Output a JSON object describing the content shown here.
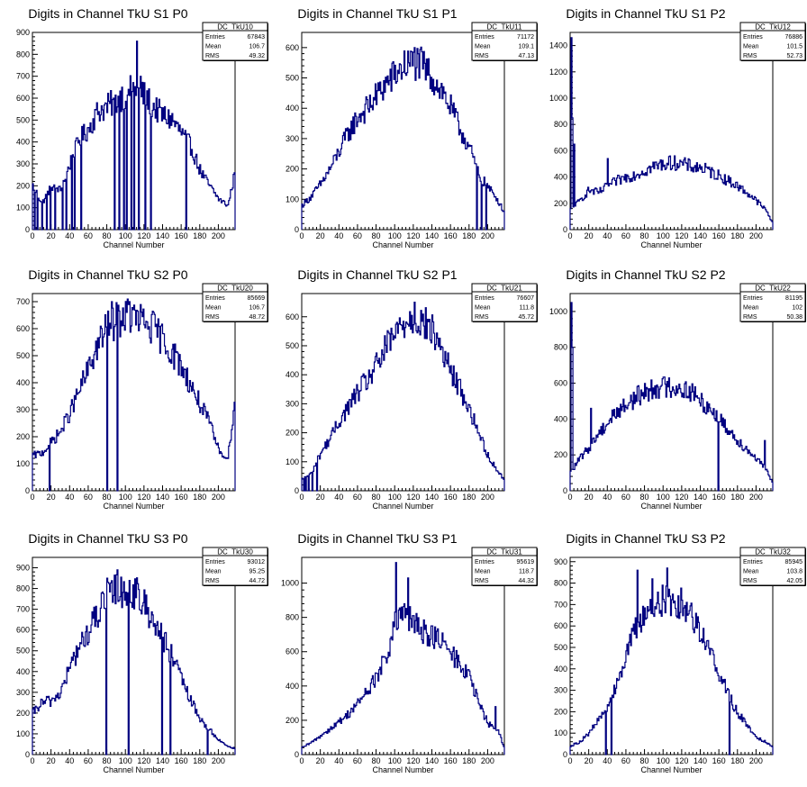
{
  "chart_data": [
    {
      "type": "histogram",
      "title": "Digits in Channel TkU S1 P0",
      "xlabel": "Channel Number",
      "ylabel": "",
      "xlim": [
        0,
        218
      ],
      "ylim": [
        0,
        900
      ],
      "yticks": [
        0,
        100,
        200,
        300,
        400,
        500,
        600,
        700,
        800,
        900
      ],
      "xticks": [
        0,
        20,
        40,
        60,
        80,
        100,
        120,
        140,
        160,
        180,
        200
      ],
      "stats": {
        "name": "DC_TkU10",
        "entries": "67843",
        "mean": "106.7",
        "rms": "49.32"
      },
      "profile": [
        [
          0,
          200
        ],
        [
          10,
          120
        ],
        [
          20,
          200
        ],
        [
          30,
          180
        ],
        [
          40,
          300
        ],
        [
          50,
          410
        ],
        [
          60,
          460
        ],
        [
          70,
          540
        ],
        [
          80,
          560
        ],
        [
          90,
          590
        ],
        [
          100,
          620
        ],
        [
          110,
          650
        ],
        [
          120,
          610
        ],
        [
          130,
          560
        ],
        [
          140,
          520
        ],
        [
          150,
          500
        ],
        [
          160,
          440
        ],
        [
          170,
          380
        ],
        [
          180,
          270
        ],
        [
          190,
          200
        ],
        [
          200,
          140
        ],
        [
          210,
          110
        ],
        [
          217,
          250
        ]
      ],
      "spikes": [
        [
          112,
          860
        ],
        [
          103,
          640
        ],
        [
          116,
          700
        ],
        [
          96,
          650
        ],
        [
          88,
          420
        ]
      ],
      "dips": [
        2,
        5,
        10,
        15,
        19,
        24,
        32,
        36,
        42,
        45,
        52,
        88,
        93,
        98,
        101,
        106,
        109,
        114,
        121,
        127,
        165
      ]
    },
    {
      "type": "histogram",
      "title": "Digits in Channel TkU S1 P1",
      "xlabel": "Channel Number",
      "ylabel": "",
      "xlim": [
        0,
        218
      ],
      "ylim": [
        0,
        650
      ],
      "yticks": [
        0,
        100,
        200,
        300,
        400,
        500,
        600
      ],
      "xticks": [
        0,
        20,
        40,
        60,
        80,
        100,
        120,
        140,
        160,
        180,
        200
      ],
      "stats": {
        "name": "DC_TkU11",
        "entries": "71172",
        "mean": "109.1",
        "rms": "47.13"
      },
      "profile": [
        [
          0,
          80
        ],
        [
          10,
          110
        ],
        [
          20,
          150
        ],
        [
          30,
          200
        ],
        [
          40,
          260
        ],
        [
          50,
          320
        ],
        [
          60,
          370
        ],
        [
          70,
          400
        ],
        [
          80,
          440
        ],
        [
          90,
          480
        ],
        [
          100,
          510
        ],
        [
          110,
          540
        ],
        [
          120,
          550
        ],
        [
          130,
          540
        ],
        [
          140,
          500
        ],
        [
          150,
          460
        ],
        [
          160,
          400
        ],
        [
          170,
          330
        ],
        [
          180,
          270
        ],
        [
          190,
          180
        ],
        [
          200,
          140
        ],
        [
          210,
          100
        ],
        [
          217,
          60
        ]
      ],
      "spikes": [
        [
          121,
          600
        ]
      ],
      "dips": [
        188,
        193,
        198
      ]
    },
    {
      "type": "histogram",
      "title": "Digits in Channel TkU S1 P2",
      "xlabel": "Channel Number",
      "ylabel": "",
      "xlim": [
        0,
        218
      ],
      "ylim": [
        0,
        1500
      ],
      "yticks": [
        0,
        200,
        400,
        600,
        800,
        1000,
        1200,
        1400
      ],
      "xticks": [
        0,
        20,
        40,
        60,
        80,
        100,
        120,
        140,
        160,
        180,
        200
      ],
      "stats": {
        "name": "DC_TkU12",
        "entries": "76886",
        "mean": "101.5",
        "rms": "52.73"
      },
      "profile": [
        [
          0,
          150
        ],
        [
          10,
          220
        ],
        [
          20,
          300
        ],
        [
          30,
          280
        ],
        [
          40,
          330
        ],
        [
          50,
          370
        ],
        [
          60,
          400
        ],
        [
          70,
          420
        ],
        [
          80,
          450
        ],
        [
          90,
          480
        ],
        [
          100,
          500
        ],
        [
          110,
          510
        ],
        [
          120,
          500
        ],
        [
          130,
          480
        ],
        [
          140,
          470
        ],
        [
          150,
          440
        ],
        [
          160,
          410
        ],
        [
          170,
          370
        ],
        [
          180,
          330
        ],
        [
          190,
          280
        ],
        [
          200,
          220
        ],
        [
          210,
          150
        ],
        [
          217,
          60
        ]
      ],
      "spikes": [
        [
          1,
          1460
        ],
        [
          2,
          850
        ],
        [
          4,
          650
        ],
        [
          40,
          540
        ]
      ],
      "dips": []
    },
    {
      "type": "histogram",
      "title": "Digits in Channel TkU S2 P0",
      "xlabel": "Channel Number",
      "ylabel": "",
      "xlim": [
        0,
        218
      ],
      "ylim": [
        0,
        730
      ],
      "yticks": [
        0,
        100,
        200,
        300,
        400,
        500,
        600,
        700
      ],
      "xticks": [
        0,
        20,
        40,
        60,
        80,
        100,
        120,
        140,
        160,
        180,
        200
      ],
      "stats": {
        "name": "DC_TkU20",
        "entries": "85669",
        "mean": "106.7",
        "rms": "48.72"
      },
      "profile": [
        [
          0,
          130
        ],
        [
          10,
          140
        ],
        [
          20,
          180
        ],
        [
          30,
          220
        ],
        [
          40,
          290
        ],
        [
          50,
          370
        ],
        [
          60,
          450
        ],
        [
          70,
          540
        ],
        [
          80,
          600
        ],
        [
          90,
          630
        ],
        [
          100,
          650
        ],
        [
          110,
          640
        ],
        [
          120,
          620
        ],
        [
          130,
          600
        ],
        [
          140,
          560
        ],
        [
          150,
          510
        ],
        [
          160,
          460
        ],
        [
          170,
          390
        ],
        [
          180,
          320
        ],
        [
          190,
          250
        ],
        [
          200,
          150
        ],
        [
          210,
          120
        ],
        [
          217,
          330
        ]
      ],
      "spikes": [
        [
          85,
          700
        ],
        [
          104,
          700
        ]
      ],
      "dips": [
        18,
        80,
        91
      ]
    },
    {
      "type": "histogram",
      "title": "Digits in Channel TkU S2 P1",
      "xlabel": "Channel Number",
      "ylabel": "",
      "xlim": [
        0,
        218
      ],
      "ylim": [
        0,
        680
      ],
      "yticks": [
        0,
        100,
        200,
        300,
        400,
        500,
        600
      ],
      "xticks": [
        0,
        20,
        40,
        60,
        80,
        100,
        120,
        140,
        160,
        180,
        200
      ],
      "stats": {
        "name": "DC_TkU21",
        "entries": "76607",
        "mean": "111.8",
        "rms": "45.72"
      },
      "profile": [
        [
          0,
          40
        ],
        [
          10,
          60
        ],
        [
          20,
          130
        ],
        [
          30,
          180
        ],
        [
          40,
          240
        ],
        [
          50,
          290
        ],
        [
          60,
          340
        ],
        [
          70,
          380
        ],
        [
          80,
          430
        ],
        [
          90,
          490
        ],
        [
          100,
          540
        ],
        [
          110,
          580
        ],
        [
          120,
          600
        ],
        [
          130,
          580
        ],
        [
          140,
          550
        ],
        [
          150,
          490
        ],
        [
          160,
          410
        ],
        [
          170,
          350
        ],
        [
          180,
          280
        ],
        [
          190,
          200
        ],
        [
          200,
          120
        ],
        [
          210,
          70
        ],
        [
          217,
          40
        ]
      ],
      "spikes": [
        [
          121,
          650
        ]
      ],
      "dips": [
        2,
        4,
        7,
        11,
        16
      ]
    },
    {
      "type": "histogram",
      "title": "Digits in Channel TkU S2 P2",
      "xlabel": "Channel Number",
      "ylabel": "",
      "xlim": [
        0,
        218
      ],
      "ylim": [
        0,
        1100
      ],
      "yticks": [
        0,
        200,
        400,
        600,
        800,
        1000
      ],
      "xticks": [
        0,
        20,
        40,
        60,
        80,
        100,
        120,
        140,
        160,
        180,
        200
      ],
      "stats": {
        "name": "DC_TkU22",
        "entries": "81195",
        "mean": "102",
        "rms": "50.38"
      },
      "profile": [
        [
          0,
          100
        ],
        [
          10,
          180
        ],
        [
          20,
          240
        ],
        [
          30,
          320
        ],
        [
          40,
          380
        ],
        [
          50,
          440
        ],
        [
          60,
          480
        ],
        [
          70,
          520
        ],
        [
          80,
          550
        ],
        [
          90,
          570
        ],
        [
          100,
          580
        ],
        [
          110,
          580
        ],
        [
          120,
          570
        ],
        [
          130,
          550
        ],
        [
          140,
          500
        ],
        [
          150,
          460
        ],
        [
          160,
          400
        ],
        [
          170,
          340
        ],
        [
          180,
          280
        ],
        [
          190,
          230
        ],
        [
          200,
          180
        ],
        [
          210,
          120
        ],
        [
          217,
          50
        ]
      ],
      "spikes": [
        [
          1,
          1050
        ],
        [
          2,
          800
        ],
        [
          22,
          460
        ],
        [
          45,
          450
        ],
        [
          93,
          590
        ],
        [
          209,
          280
        ]
      ],
      "dips": [
        159
      ]
    },
    {
      "type": "histogram",
      "title": "Digits in Channel TkU S3 P0",
      "xlabel": "Channel Number",
      "ylabel": "",
      "xlim": [
        0,
        218
      ],
      "ylim": [
        0,
        950
      ],
      "yticks": [
        0,
        100,
        200,
        300,
        400,
        500,
        600,
        700,
        800,
        900
      ],
      "xticks": [
        0,
        20,
        40,
        60,
        80,
        100,
        120,
        140,
        160,
        180,
        200
      ],
      "stats": {
        "name": "DC_TkU30",
        "entries": "93012",
        "mean": "95.25",
        "rms": "44.72"
      },
      "profile": [
        [
          0,
          200
        ],
        [
          10,
          250
        ],
        [
          20,
          260
        ],
        [
          30,
          300
        ],
        [
          40,
          420
        ],
        [
          50,
          520
        ],
        [
          60,
          590
        ],
        [
          70,
          680
        ],
        [
          80,
          750
        ],
        [
          90,
          800
        ],
        [
          100,
          790
        ],
        [
          110,
          780
        ],
        [
          120,
          720
        ],
        [
          130,
          650
        ],
        [
          140,
          560
        ],
        [
          150,
          470
        ],
        [
          160,
          360
        ],
        [
          170,
          260
        ],
        [
          180,
          170
        ],
        [
          190,
          120
        ],
        [
          200,
          70
        ],
        [
          210,
          40
        ],
        [
          217,
          30
        ]
      ],
      "spikes": [
        [
          91,
          890
        ],
        [
          103,
          920
        ],
        [
          80,
          850
        ]
      ],
      "dips": [
        79,
        103,
        139,
        148,
        188
      ]
    },
    {
      "type": "histogram",
      "title": "Digits in Channel TkU S3 P1",
      "xlabel": "Channel Number",
      "ylabel": "",
      "xlim": [
        0,
        218
      ],
      "ylim": [
        0,
        1150
      ],
      "yticks": [
        0,
        200,
        400,
        600,
        800,
        1000
      ],
      "xticks": [
        0,
        20,
        40,
        60,
        80,
        100,
        120,
        140,
        160,
        180,
        200
      ],
      "stats": {
        "name": "DC_TkU31",
        "entries": "95619",
        "mean": "118.7",
        "rms": "44.32"
      },
      "profile": [
        [
          0,
          40
        ],
        [
          10,
          70
        ],
        [
          20,
          110
        ],
        [
          30,
          150
        ],
        [
          40,
          190
        ],
        [
          50,
          240
        ],
        [
          60,
          300
        ],
        [
          70,
          370
        ],
        [
          80,
          450
        ],
        [
          90,
          560
        ],
        [
          100,
          750
        ],
        [
          110,
          820
        ],
        [
          120,
          760
        ],
        [
          130,
          720
        ],
        [
          140,
          700
        ],
        [
          150,
          650
        ],
        [
          160,
          590
        ],
        [
          170,
          530
        ],
        [
          180,
          450
        ],
        [
          190,
          300
        ],
        [
          200,
          180
        ],
        [
          210,
          150
        ],
        [
          217,
          50
        ]
      ],
      "spikes": [
        [
          101,
          1120
        ],
        [
          114,
          1030
        ],
        [
          110,
          880
        ],
        [
          208,
          280
        ]
      ],
      "dips": []
    },
    {
      "type": "histogram",
      "title": "Digits in Channel TkU S3 P2",
      "xlabel": "Channel Number",
      "ylabel": "",
      "xlim": [
        0,
        218
      ],
      "ylim": [
        0,
        920
      ],
      "yticks": [
        0,
        100,
        200,
        300,
        400,
        500,
        600,
        700,
        800,
        900
      ],
      "xticks": [
        0,
        20,
        40,
        60,
        80,
        100,
        120,
        140,
        160,
        180,
        200
      ],
      "stats": {
        "name": "DC_TkU32",
        "entries": "85945",
        "mean": "103.8",
        "rms": "42.05"
      },
      "profile": [
        [
          0,
          40
        ],
        [
          10,
          60
        ],
        [
          20,
          100
        ],
        [
          30,
          160
        ],
        [
          40,
          230
        ],
        [
          50,
          340
        ],
        [
          60,
          470
        ],
        [
          70,
          580
        ],
        [
          80,
          660
        ],
        [
          90,
          700
        ],
        [
          100,
          720
        ],
        [
          110,
          720
        ],
        [
          120,
          700
        ],
        [
          130,
          660
        ],
        [
          140,
          580
        ],
        [
          150,
          480
        ],
        [
          160,
          380
        ],
        [
          170,
          280
        ],
        [
          180,
          190
        ],
        [
          190,
          140
        ],
        [
          200,
          80
        ],
        [
          210,
          60
        ],
        [
          217,
          40
        ]
      ],
      "spikes": [
        [
          72,
          860
        ],
        [
          104,
          870
        ],
        [
          88,
          820
        ]
      ],
      "dips": [
        38,
        44,
        171
      ]
    }
  ]
}
